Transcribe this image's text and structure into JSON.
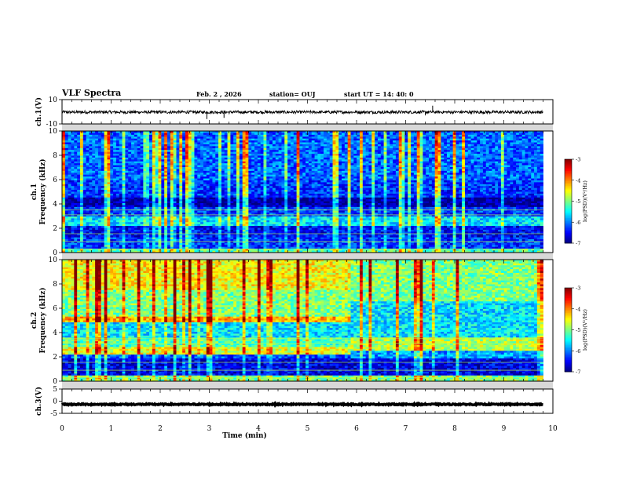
{
  "header": {
    "title": "VLF Spectra",
    "date": "Feb. 2 , 2026",
    "station": "station= OUJ",
    "start": "start  UT =   14: 40: 0"
  },
  "chart_data": [
    {
      "type": "line",
      "panel": "ch1-waveform",
      "ylabel": "ch.1(V)",
      "ylim": [
        -10,
        10
      ],
      "yticks": [
        "10",
        "-10"
      ],
      "xlim": [
        0,
        10
      ],
      "series": [
        {
          "name": "ch.1 waveform",
          "level": -0.3,
          "noise": 1.2,
          "spikes": [
            {
              "t": 2.95,
              "v": -6
            },
            {
              "t": 3.3,
              "v": -5
            },
            {
              "t": 7.55,
              "v": 5
            },
            {
              "t": 7.4,
              "v": -3
            }
          ]
        }
      ]
    },
    {
      "type": "heatmap",
      "panel": "ch1-spectrogram",
      "ylabel": "ch.1 Frequency (kHz)",
      "ylim": [
        0,
        10
      ],
      "yticks": [
        "0",
        "2",
        "4",
        "6",
        "8",
        "10"
      ],
      "xlim": [
        0,
        10
      ],
      "data_end_min": 9.8,
      "colorbar": {
        "label": "log(PSD)(V²/Hz)",
        "ticks": [
          "-3",
          "-4",
          "-5",
          "-6",
          "-7"
        ],
        "range": [
          -7,
          -3
        ]
      },
      "bands": [
        {
          "f": [
            0.0,
            0.3
          ],
          "v": -5.2
        },
        {
          "f": [
            0.3,
            1.2
          ],
          "v": -6.3
        },
        {
          "f": [
            1.2,
            2.2
          ],
          "v": -6.5
        },
        {
          "f": [
            2.2,
            3.0
          ],
          "v": -5.6
        },
        {
          "f": [
            3.0,
            3.8
          ],
          "v": -6.3
        },
        {
          "f": [
            3.8,
            4.5
          ],
          "v": -6.9
        },
        {
          "f": [
            4.5,
            6.0
          ],
          "v": -6.3
        },
        {
          "f": [
            6.0,
            10.0
          ],
          "v": -6.1
        }
      ]
    },
    {
      "type": "heatmap",
      "panel": "ch2-spectrogram",
      "ylabel": "ch.2 Frequency (kHz)",
      "ylim": [
        0,
        10
      ],
      "yticks": [
        "0",
        "2",
        "4",
        "6",
        "8",
        "10"
      ],
      "xlim": [
        0,
        10
      ],
      "data_end_min": 9.8,
      "transition_min": 5.85,
      "colorbar": {
        "label": "log(PSD)(V²/Hz)",
        "ticks": [
          "-3",
          "-4",
          "-5",
          "-6",
          "-7"
        ],
        "range": [
          -7,
          -3
        ]
      },
      "bands_before": [
        {
          "f": [
            0.0,
            0.4
          ],
          "v": -5.0
        },
        {
          "f": [
            0.4,
            1.8
          ],
          "v": -6.6
        },
        {
          "f": [
            1.8,
            2.2
          ],
          "v": -6.2
        },
        {
          "f": [
            2.2,
            2.8
          ],
          "v": -4.6
        },
        {
          "f": [
            2.8,
            3.6
          ],
          "v": -5.2
        },
        {
          "f": [
            3.6,
            4.8
          ],
          "v": -5.6
        },
        {
          "f": [
            4.8,
            5.3
          ],
          "v": -4.2
        },
        {
          "f": [
            5.3,
            7.5
          ],
          "v": -5.0
        },
        {
          "f": [
            7.5,
            10.0
          ],
          "v": -4.5
        }
      ],
      "bands_after": [
        {
          "f": [
            0.0,
            0.4
          ],
          "v": -5.0
        },
        {
          "f": [
            0.4,
            1.8
          ],
          "v": -6.6
        },
        {
          "f": [
            1.8,
            2.5
          ],
          "v": -5.9
        },
        {
          "f": [
            2.5,
            3.6
          ],
          "v": -4.8
        },
        {
          "f": [
            3.6,
            6.5
          ],
          "v": -5.6
        },
        {
          "f": [
            6.5,
            10.0
          ],
          "v": -5.0
        }
      ]
    },
    {
      "type": "line",
      "panel": "ch3-waveform",
      "ylabel": "ch.3(V)",
      "ylim": [
        -5,
        5
      ],
      "yticks": [
        "5",
        "0",
        "-5"
      ],
      "xlim": [
        0,
        10
      ],
      "xlabel": "Time  (min)",
      "xticks": [
        "0",
        "1",
        "2",
        "3",
        "4",
        "5",
        "6",
        "7",
        "8",
        "9",
        "10"
      ],
      "series": [
        {
          "name": "ch.3 waveform",
          "level": -1.3,
          "noise": 0.25,
          "spikes": []
        }
      ]
    }
  ]
}
